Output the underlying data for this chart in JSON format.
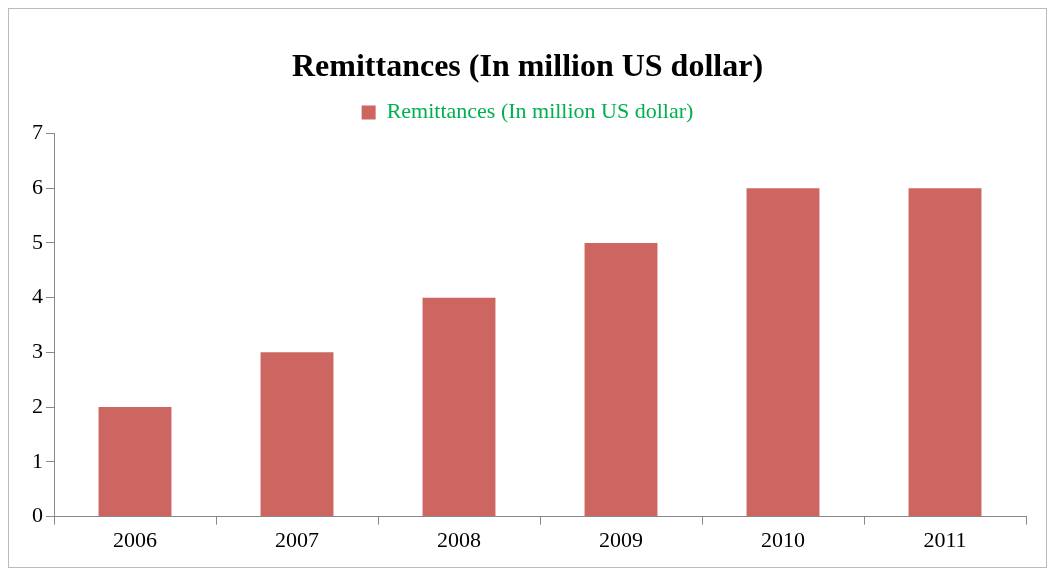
{
  "chart_data": {
    "type": "bar",
    "title": "Remittances (In million US dollar)",
    "categories": [
      "2006",
      "2007",
      "2008",
      "2009",
      "2010",
      "2011"
    ],
    "series": [
      {
        "name": "Remittances (In million US dollar)",
        "color": "#cd6660",
        "values": [
          2,
          3,
          4,
          5,
          6,
          6
        ]
      }
    ],
    "ylim": [
      0,
      7
    ],
    "yticks": [
      0,
      1,
      2,
      3,
      4,
      5,
      6,
      7
    ],
    "grid": false,
    "legend": "top"
  }
}
